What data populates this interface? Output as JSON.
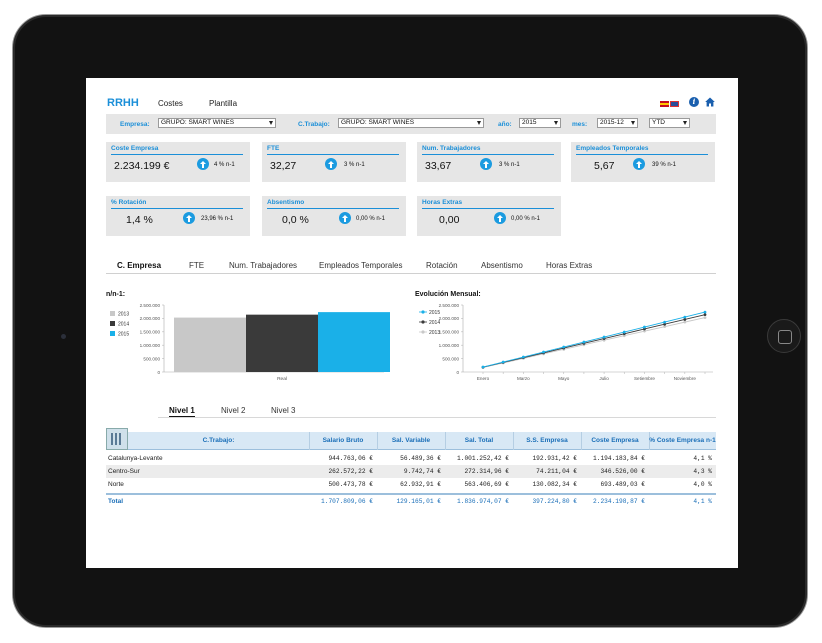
{
  "header": {
    "brand": "RRHH",
    "nav": [
      "Costes",
      "Plantilla"
    ]
  },
  "filters": {
    "empresa_label": "Empresa:",
    "empresa_value": "GRUPO: SMART WINES",
    "ctrabajo_label": "C.Trabajo:",
    "ctrabajo_value": "GRUPO: SMART WINES",
    "anio_label": "año:",
    "anio_value": "2015",
    "mes_label": "mes:",
    "mes_value": "2015-12",
    "period_value": "YTD"
  },
  "kpis": [
    {
      "title": "Coste Empresa",
      "value": "2.234.199 €",
      "delta": "4 % n-1"
    },
    {
      "title": "FTE",
      "value": "32,27",
      "delta": "3 % n-1"
    },
    {
      "title": "Num. Trabajadores",
      "value": "33,67",
      "delta": "3 % n-1"
    },
    {
      "title": "Empleados Temporales",
      "value": "5,67",
      "delta": "39 % n-1"
    },
    {
      "title": "% Rotación",
      "value": "1,4 %",
      "delta": "23,96 % n-1"
    },
    {
      "title": "Absentismo",
      "value": "0,0 %",
      "delta": "0,00 % n-1"
    },
    {
      "title": "Horas Extras",
      "value": "0,00",
      "delta": "0,00 % n-1"
    }
  ],
  "tabs": [
    "C. Empresa",
    "FTE",
    "Num. Trabajadores",
    "Empleados Temporales",
    "Rotación",
    "Absentismo",
    "Horas Extras"
  ],
  "colors": {
    "accent": "#1b8fd8",
    "s2013": "#c8c8c8",
    "s2014": "#3a3a3a",
    "s2015": "#1ab0e8"
  },
  "chart_data": [
    {
      "type": "bar",
      "title": "n/n-1:",
      "categories": [
        "Real"
      ],
      "yticks": [
        "2.500.000",
        "2.000.000",
        "1.500.000",
        "1.000.000",
        "500.000",
        "0"
      ],
      "ylim": [
        0,
        2500000
      ],
      "legend_position": "left",
      "series": [
        {
          "name": "2013",
          "values": [
            2030000
          ]
        },
        {
          "name": "2014",
          "values": [
            2140000
          ]
        },
        {
          "name": "2015",
          "values": [
            2234199
          ]
        }
      ]
    },
    {
      "type": "line",
      "title": "Evolución Mensual:",
      "x_labels": [
        "Enero",
        "Marzo",
        "Mayo",
        "Julio",
        "Setiembre",
        "Noviembre"
      ],
      "yticks": [
        "2.500.000",
        "2.000.000",
        "1.500.000",
        "1.000.000",
        "500.000",
        "0"
      ],
      "ylim": [
        0,
        2500000
      ],
      "legend_position": "left",
      "series": [
        {
          "name": "2015",
          "values": [
            186000,
            372000,
            558000,
            745000,
            931000,
            1117000,
            1303000,
            1490000,
            1676000,
            1862000,
            2048000,
            2234199
          ]
        },
        {
          "name": "2014",
          "values": [
            178000,
            357000,
            535000,
            713000,
            891000,
            1070000,
            1248000,
            1426000,
            1605000,
            1783000,
            1961000,
            2140000
          ]
        },
        {
          "name": "2013",
          "values": [
            169000,
            338000,
            508000,
            677000,
            846000,
            1015000,
            1185000,
            1354000,
            1523000,
            1692000,
            1861000,
            2030000
          ]
        }
      ]
    }
  ],
  "levels": [
    "Nivel 1",
    "Nivel 2",
    "Nivel 3"
  ],
  "table": {
    "headers": [
      "C.Trabajo:",
      "Salario Bruto",
      "Sal. Variable",
      "Sal. Total",
      "S.S. Empresa",
      "Coste Empresa",
      "% Coste Empresa n-1"
    ],
    "rows": [
      [
        "Catalunya-Levante",
        "944.763,06 €",
        "56.489,36 €",
        "1.001.252,42 €",
        "192.931,42 €",
        "1.194.183,84 €",
        "4,1 %"
      ],
      [
        "Centro-Sur",
        "262.572,22 €",
        "9.742,74 €",
        "272.314,96 €",
        "74.211,04 €",
        "346.526,00 €",
        "4,3 %"
      ],
      [
        "Norte",
        "500.473,78 €",
        "62.932,91 €",
        "563.406,69 €",
        "130.082,34 €",
        "693.489,03 €",
        "4,0 %"
      ]
    ],
    "total": [
      "Total",
      "1.707.809,06 €",
      "129.165,01 €",
      "1.836.974,07 €",
      "397.224,80 €",
      "2.234.198,87 €",
      "4,1 %"
    ]
  }
}
